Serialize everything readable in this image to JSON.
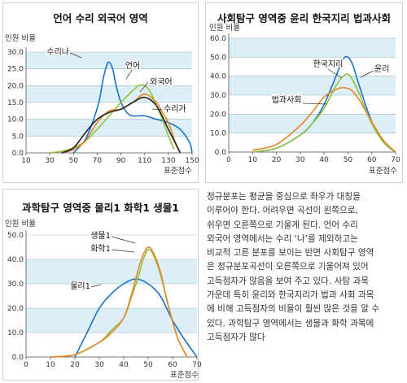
{
  "chart_data": [
    {
      "type": "line",
      "title": "언어 수리 외국어 영역",
      "ylabel": "인원 비율",
      "xlabel": "표준점수",
      "xlim": [
        10,
        150
      ],
      "ylim": [
        0,
        30
      ],
      "xticks": [
        10,
        30,
        50,
        70,
        90,
        110,
        130,
        150
      ],
      "yticks": [
        0,
        5,
        10,
        15,
        20,
        25,
        30
      ],
      "ytick_labels": [
        "0.0",
        "5.0",
        "10.0",
        "15.0",
        "20.0",
        "25.0",
        "30.0"
      ],
      "bands": true,
      "series": [
        {
          "name": "수리나",
          "color": "#1a73c9",
          "x": [
            50,
            60,
            68,
            72,
            75,
            78,
            80,
            83,
            86,
            90,
            95,
            100,
            110,
            120,
            130,
            140,
            148,
            150
          ],
          "y": [
            0,
            4,
            11,
            16,
            22,
            26,
            27,
            25,
            20,
            15,
            12,
            11,
            11,
            10,
            9,
            7,
            3,
            0
          ]
        },
        {
          "name": "언어",
          "color": "#8fc43a",
          "x": [
            30,
            40,
            50,
            60,
            70,
            80,
            90,
            100,
            105,
            110,
            115,
            120,
            125,
            130,
            135
          ],
          "y": [
            0,
            0.5,
            1.5,
            3.5,
            7,
            11,
            15,
            18.5,
            20,
            20,
            18,
            14,
            10,
            5,
            1
          ]
        },
        {
          "name": "외국어",
          "color": "#e8842a",
          "x": [
            40,
            50,
            60,
            70,
            80,
            90,
            100,
            110,
            120,
            125,
            130,
            135,
            140
          ],
          "y": [
            0,
            1,
            3.5,
            9,
            12.5,
            13,
            15,
            17.5,
            15,
            12,
            9,
            4,
            0
          ]
        },
        {
          "name": "수리가",
          "color": "#222222",
          "x": [
            40,
            50,
            60,
            70,
            80,
            90,
            100,
            110,
            120,
            130,
            140
          ],
          "y": [
            0,
            1.5,
            6,
            10,
            12,
            13,
            15,
            16.5,
            14,
            7,
            0
          ]
        }
      ],
      "labels": [
        {
          "text": "수리나",
          "series": "수리나"
        },
        {
          "text": "언어",
          "series": "언어"
        },
        {
          "text": "외국어",
          "series": "외국어"
        },
        {
          "text": "수리가",
          "series": "수리가"
        }
      ]
    },
    {
      "type": "line",
      "title": "사회탐구 영역중 윤리 한국지리 법과사회",
      "ylabel": "인원 비율",
      "xlabel": "표준점수",
      "xlim": [
        0,
        70
      ],
      "ylim": [
        0,
        60
      ],
      "xticks": [
        0,
        10,
        20,
        30,
        40,
        50,
        60,
        70
      ],
      "yticks": [
        0,
        10,
        20,
        30,
        40,
        50,
        60
      ],
      "ytick_labels": [
        "0.0",
        "10.0",
        "20.0",
        "30.0",
        "40.0",
        "50.0",
        "60.0"
      ],
      "bands": true,
      "series": [
        {
          "name": "한국지리",
          "color": "#1a73c9",
          "x": [
            10,
            20,
            30,
            35,
            40,
            45,
            48,
            50,
            52,
            55,
            60,
            65,
            70
          ],
          "y": [
            0,
            2,
            9,
            15,
            25,
            40,
            49,
            50,
            46,
            34,
            16,
            5,
            0
          ]
        },
        {
          "name": "윤리",
          "color": "#8fc43a",
          "x": [
            10,
            20,
            30,
            35,
            40,
            45,
            48,
            50,
            52,
            55,
            60,
            65,
            70
          ],
          "y": [
            0,
            2,
            9,
            15,
            23,
            35,
            40,
            41,
            38,
            30,
            15,
            5,
            0
          ]
        },
        {
          "name": "법과사회",
          "color": "#e8842a",
          "x": [
            10,
            20,
            30,
            35,
            40,
            45,
            48,
            50,
            52,
            55,
            60,
            65,
            70
          ],
          "y": [
            1,
            4,
            14,
            21,
            29,
            33,
            34,
            33.5,
            32,
            27,
            16,
            6,
            0
          ]
        }
      ],
      "labels": [
        {
          "text": "한국지리",
          "series": "한국지리"
        },
        {
          "text": "윤리",
          "series": "윤리"
        },
        {
          "text": "법과사회",
          "series": "법과사회"
        }
      ]
    },
    {
      "type": "line",
      "title": "과학탐구 영역중 물리1 화학1 생물1",
      "ylabel": "인원 비율",
      "xlabel": "표준점수",
      "xlim": [
        0,
        70
      ],
      "ylim": [
        0,
        50
      ],
      "xticks": [
        0,
        10,
        20,
        30,
        40,
        50,
        60,
        70
      ],
      "yticks": [
        0,
        10,
        20,
        30,
        40,
        50
      ],
      "ytick_labels": [
        "0.0",
        "10.0",
        "20.0",
        "30.0",
        "40.0",
        "50.0"
      ],
      "bands": true,
      "series": [
        {
          "name": "물리1",
          "color": "#1a73c9",
          "x": [
            20,
            25,
            30,
            35,
            40,
            45,
            50,
            55,
            60,
            65,
            70
          ],
          "y": [
            0,
            10,
            20,
            26,
            30,
            32,
            30,
            25,
            15,
            7,
            0
          ]
        },
        {
          "name": "화학1",
          "color": "#8fc43a",
          "x": [
            10,
            20,
            30,
            35,
            40,
            43,
            46,
            48,
            50,
            52,
            55,
            58,
            62,
            66
          ],
          "y": [
            0,
            1,
            6,
            11,
            16,
            24,
            33,
            40,
            44,
            42,
            34,
            22,
            8,
            0
          ]
        },
        {
          "name": "생물1",
          "color": "#e8842a",
          "x": [
            10,
            20,
            30,
            35,
            40,
            43,
            46,
            48,
            50,
            52,
            55,
            58,
            62,
            66
          ],
          "y": [
            0,
            1,
            6,
            10,
            16,
            25,
            36,
            42,
            45,
            43,
            35,
            22,
            8,
            0
          ]
        }
      ],
      "labels": [
        {
          "text": "생물1",
          "series": "생물1"
        },
        {
          "text": "화학1",
          "series": "화학1"
        },
        {
          "text": "물리1",
          "series": "물리1"
        }
      ]
    }
  ],
  "paragraph": [
    "정규분포는 평균을 중심으로 좌우가 대칭을",
    "이루어야 한다. 어려우면 곡선이 왼쪽으로,",
    "쉬우면 오른쪽으로 기울게 된다. 언어 수리",
    "외국어 영역에서는 수리 ‘나’를 제외하고는",
    "비교적 고른 분포를 보이는 반면 사회탐구 영역",
    "은 정규분포곡선이 오른쪽으로 기울어져 있어",
    "고득점자가 많음을 보여 주고 있다. 사탐 과목",
    "가운데 특히 윤리와 한국지리가 법과 사회 과목",
    "에 비해 고득점자의 비율이 훨씬 많은 것을 알 수",
    "있다. 과학탐구 영역에서는 생물과 화학 과목에",
    "고득점자가 많다"
  ]
}
